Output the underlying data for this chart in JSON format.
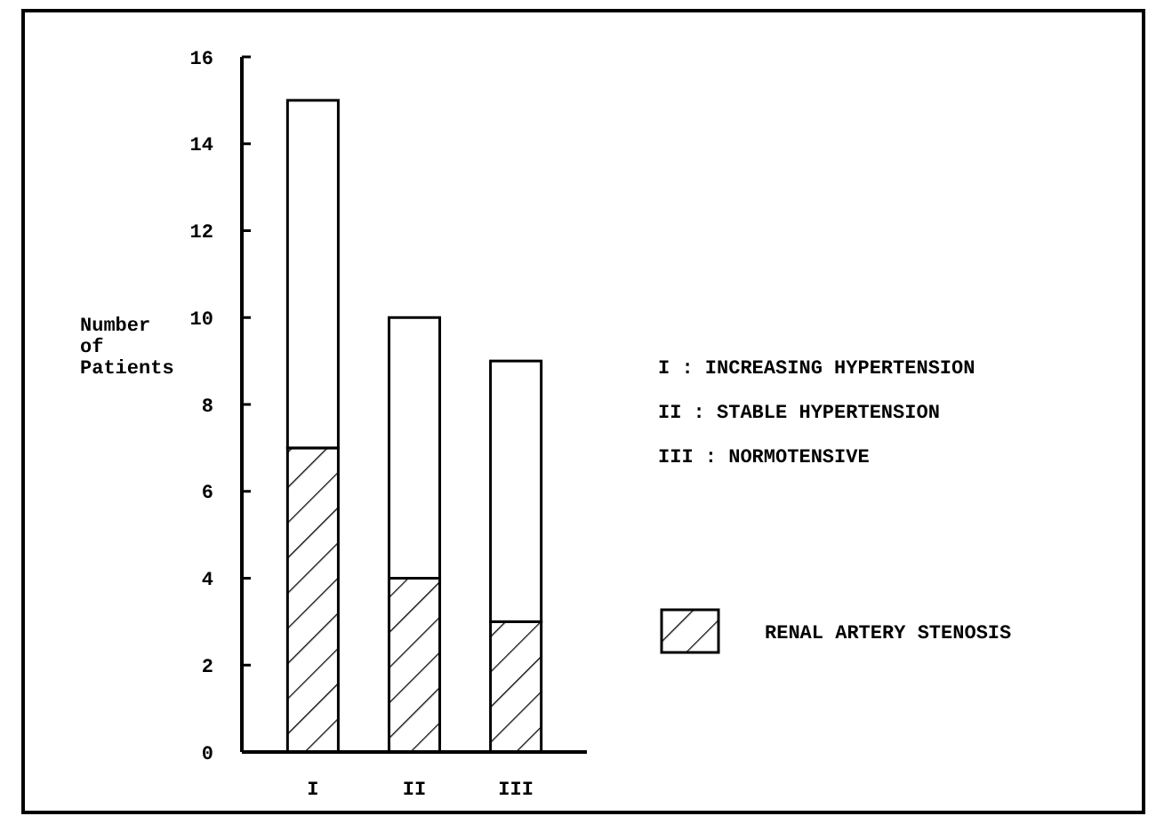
{
  "chart_data": {
    "type": "bar",
    "ylabel": "Number of Patients",
    "categories": [
      "I",
      "II",
      "III"
    ],
    "stacked": true,
    "ylim": [
      0,
      16
    ],
    "yticks": [
      0,
      2,
      4,
      6,
      8,
      10,
      12,
      14,
      16
    ],
    "legend": "right",
    "grid": false,
    "series": [
      {
        "name": "RENAL ARTERY STENOSIS",
        "color": "#000000",
        "values": [
          7,
          4,
          3
        ]
      },
      {
        "color": "#ffffff",
        "values": [
          8,
          6,
          6
        ]
      }
    ],
    "annotations": [
      "I : INCREASING HYPERTENSION",
      "II : STABLE HYPERTENSION",
      "III : NORMOTENSIVE"
    ]
  }
}
